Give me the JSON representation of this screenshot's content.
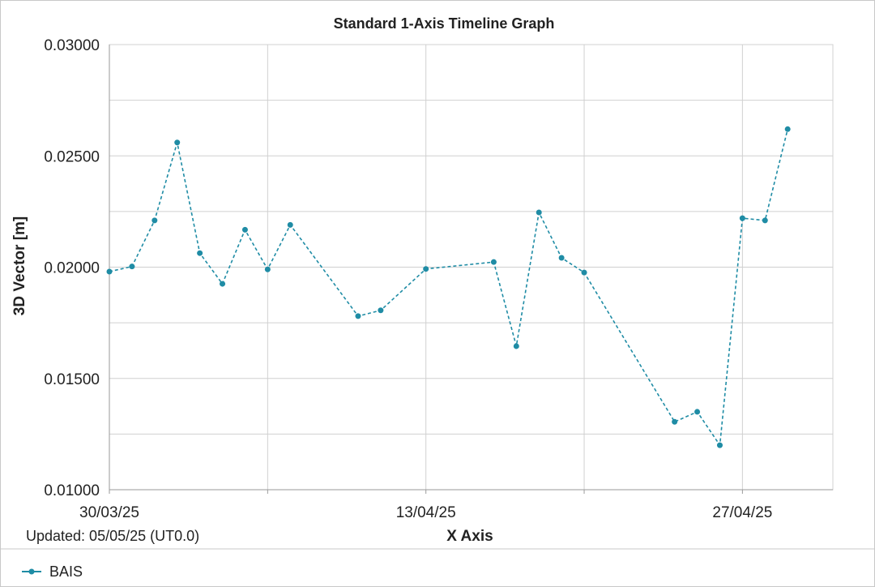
{
  "chart_data": {
    "type": "line",
    "title": "Standard 1-Axis Timeline Graph",
    "xlabel": "X Axis",
    "ylabel": "3D Vector [m]",
    "ylim": [
      0.01,
      0.03
    ],
    "xlim": [
      "2025-03-30",
      "2025-05-01"
    ],
    "yticks": [
      "0.01000",
      "0.01500",
      "0.02000",
      "0.02500",
      "0.03000"
    ],
    "xticks": [
      {
        "date": "2025-03-30",
        "label": "30/03/25"
      },
      {
        "date": "2025-04-13",
        "label": "13/04/25"
      },
      {
        "date": "2025-04-27",
        "label": "27/04/25"
      }
    ],
    "x_gridlines": [
      "2025-03-30",
      "2025-04-06",
      "2025-04-13",
      "2025-04-20",
      "2025-04-27"
    ],
    "grid": true,
    "line_style": "dashed",
    "legend_position": "bottom-left",
    "series": [
      {
        "name": "BAIS",
        "color": "#1f8ca5",
        "points": [
          {
            "x": "2025-03-30",
            "y": 0.0198
          },
          {
            "x": "2025-03-31",
            "y": 0.02003
          },
          {
            "x": "2025-04-01",
            "y": 0.0221
          },
          {
            "x": "2025-04-02",
            "y": 0.0256
          },
          {
            "x": "2025-04-03",
            "y": 0.02063
          },
          {
            "x": "2025-04-04",
            "y": 0.01925
          },
          {
            "x": "2025-04-05",
            "y": 0.02168
          },
          {
            "x": "2025-04-06",
            "y": 0.0199
          },
          {
            "x": "2025-04-07",
            "y": 0.0219
          },
          {
            "x": "2025-04-10",
            "y": 0.0178
          },
          {
            "x": "2025-04-11",
            "y": 0.01806
          },
          {
            "x": "2025-04-13",
            "y": 0.01992
          },
          {
            "x": "2025-04-16",
            "y": 0.02023
          },
          {
            "x": "2025-04-17",
            "y": 0.01645
          },
          {
            "x": "2025-04-18",
            "y": 0.02246
          },
          {
            "x": "2025-04-19",
            "y": 0.02042
          },
          {
            "x": "2025-04-20",
            "y": 0.01976
          },
          {
            "x": "2025-04-24",
            "y": 0.01305
          },
          {
            "x": "2025-04-25",
            "y": 0.0135
          },
          {
            "x": "2025-04-26",
            "y": 0.012
          },
          {
            "x": "2025-04-27",
            "y": 0.0222
          },
          {
            "x": "2025-04-28",
            "y": 0.0221
          },
          {
            "x": "2025-04-29",
            "y": 0.0262
          }
        ]
      }
    ]
  },
  "footer": {
    "updated": "Updated: 05/05/25 (UT0.0)"
  }
}
